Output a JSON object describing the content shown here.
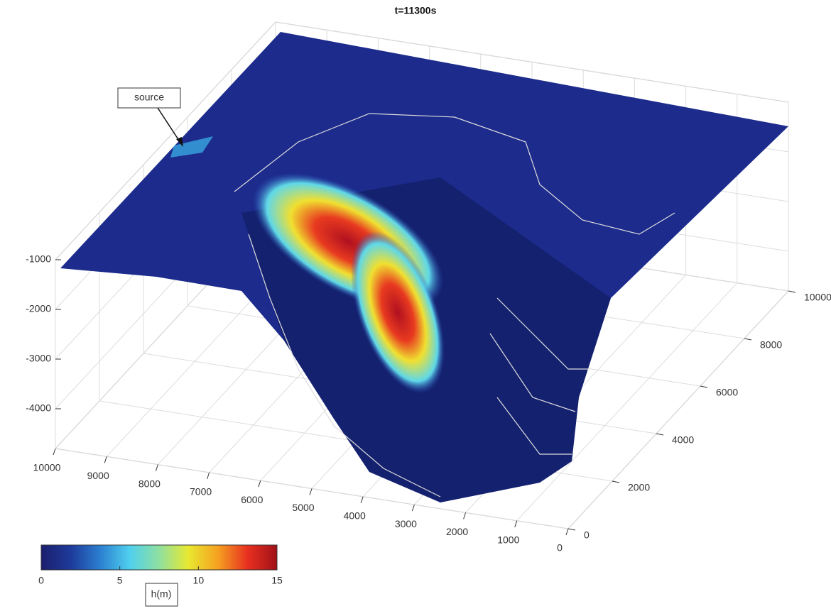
{
  "chart_data": {
    "type": "surface",
    "title": "t=11300s",
    "annotation": "source",
    "xlim": [
      0,
      10000
    ],
    "xticks": [
      0,
      1000,
      2000,
      3000,
      4000,
      5000,
      6000,
      7000,
      8000,
      9000,
      10000
    ],
    "ylim": [
      0,
      10000
    ],
    "yticks": [
      0,
      2000,
      4000,
      6000,
      8000,
      10000
    ],
    "zlim": [
      -4800,
      -1000
    ],
    "zticks": [
      -4000,
      -3000,
      -2000,
      -1000
    ],
    "grid": true,
    "colorbar": {
      "label": "h(m)",
      "clim": [
        0,
        15
      ],
      "ticks": [
        0,
        5,
        10,
        15
      ],
      "colors": [
        "#1b1f6e",
        "#1e3a9a",
        "#2b7fd0",
        "#4fd0ee",
        "#8fe0a0",
        "#e8e830",
        "#f5a020",
        "#e83020",
        "#a01018"
      ]
    }
  }
}
